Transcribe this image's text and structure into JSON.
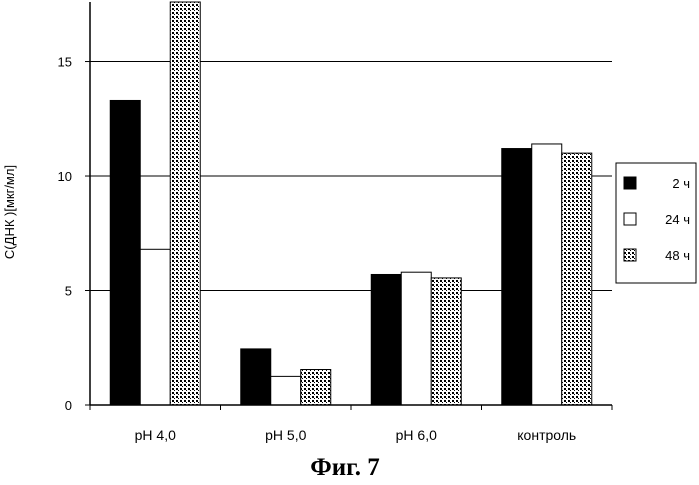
{
  "chart_data": {
    "type": "bar",
    "categories": [
      "pH 4,0",
      "pH 5,0",
      "pH 6,0",
      "контроль"
    ],
    "series": [
      {
        "name": "2 ч",
        "values": [
          13.3,
          2.45,
          5.7,
          11.2
        ],
        "fill": "black"
      },
      {
        "name": "24 ч",
        "values": [
          6.8,
          1.25,
          5.8,
          11.4
        ],
        "fill": "white"
      },
      {
        "name": "48 ч",
        "values": [
          17.6,
          1.55,
          5.55,
          11.0
        ],
        "fill": "dots"
      }
    ],
    "ylabel": "С(ДНК )[мкг/мл]",
    "xlabel": "",
    "ylim": [
      0,
      17.6
    ],
    "yticks": [
      0,
      5,
      10,
      15
    ],
    "ytick_labels": [
      "0",
      "5",
      "10",
      "15"
    ],
    "grid": true,
    "legend": "right",
    "caption": "Фиг. 7"
  }
}
